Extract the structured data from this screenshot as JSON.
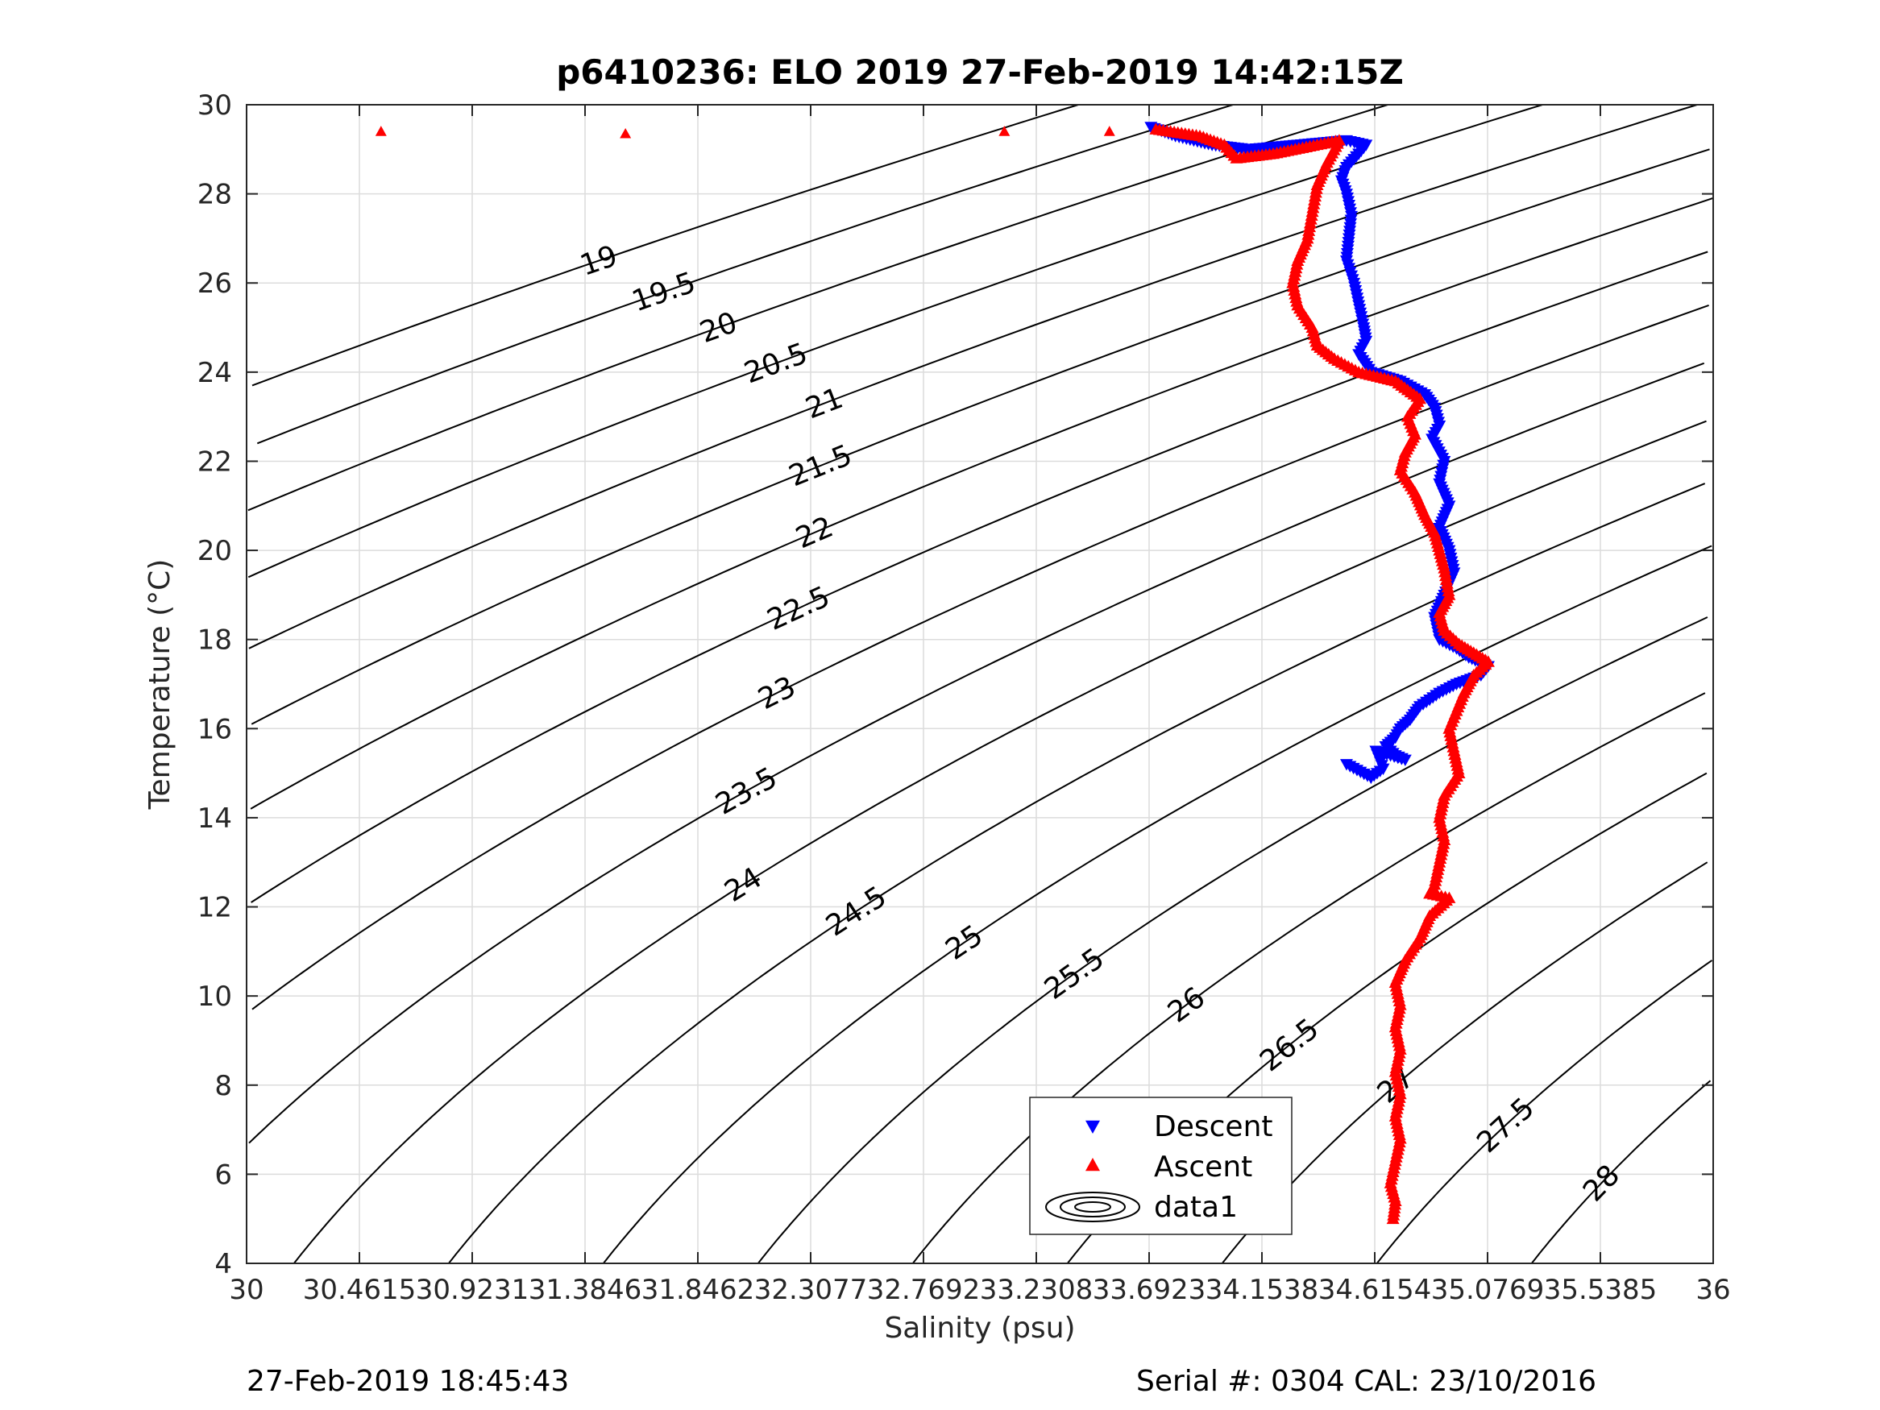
{
  "chart_data": {
    "type": "scatter",
    "title": "p6410236: ELO 2019 27-Feb-2019 14:42:15Z",
    "xlabel": "Salinity (psu)",
    "ylabel": "Temperature (°C)",
    "xlim": [
      30,
      36
    ],
    "ylim": [
      4,
      30
    ],
    "x_ticks": [
      "30",
      "30.4615",
      "30.9231",
      "31.3846",
      "31.8462",
      "32.3077",
      "32.7692",
      "33.2308",
      "33.6923",
      "34.1538",
      "34.6154",
      "35.0769",
      "35.5385",
      "36"
    ],
    "y_ticks": [
      "4",
      "6",
      "8",
      "10",
      "12",
      "14",
      "16",
      "18",
      "20",
      "22",
      "24",
      "26",
      "28",
      "30"
    ],
    "grid": true,
    "legend_position": "bottom-center",
    "legend": [
      "Descent",
      "Ascent",
      "data1"
    ],
    "density_contours": {
      "levels": [
        19,
        19.5,
        20,
        20.5,
        21,
        21.5,
        22,
        22.5,
        23,
        23.5,
        24,
        24.5,
        25,
        25.5,
        26,
        26.5,
        27,
        27.5,
        28
      ],
      "labels": [
        "19",
        "19.5",
        "20",
        "20.5",
        "21",
        "21.5",
        "22",
        "22.5",
        "23",
        "23.5",
        "24",
        "24.5",
        "25",
        "25.5",
        "26",
        "26.5",
        "27",
        "27.5",
        "28"
      ]
    },
    "series": [
      {
        "name": "Descent",
        "marker": "triangle-down",
        "color": "#0000ff",
        "points": [
          [
            33.7,
            29.5
          ],
          [
            33.8,
            29.3
          ],
          [
            33.95,
            29.1
          ],
          [
            34.1,
            29.0
          ],
          [
            34.3,
            29.1
          ],
          [
            34.5,
            29.2
          ],
          [
            34.58,
            29.1
          ],
          [
            34.55,
            28.9
          ],
          [
            34.5,
            28.6
          ],
          [
            34.48,
            28.3
          ],
          [
            34.5,
            28.0
          ],
          [
            34.52,
            27.5
          ],
          [
            34.51,
            27.0
          ],
          [
            34.5,
            26.5
          ],
          [
            34.53,
            26.0
          ],
          [
            34.55,
            25.5
          ],
          [
            34.57,
            25.0
          ],
          [
            34.58,
            24.7
          ],
          [
            34.55,
            24.4
          ],
          [
            34.6,
            24.0
          ],
          [
            34.72,
            23.8
          ],
          [
            34.82,
            23.5
          ],
          [
            34.86,
            23.2
          ],
          [
            34.88,
            22.8
          ],
          [
            34.85,
            22.5
          ],
          [
            34.9,
            22.0
          ],
          [
            34.88,
            21.5
          ],
          [
            34.92,
            21.0
          ],
          [
            34.88,
            20.5
          ],
          [
            34.92,
            20.0
          ],
          [
            34.94,
            19.5
          ],
          [
            34.9,
            19.0
          ],
          [
            34.86,
            18.5
          ],
          [
            34.88,
            18.0
          ],
          [
            34.95,
            17.8
          ],
          [
            35.0,
            17.6
          ],
          [
            35.08,
            17.4
          ],
          [
            35.05,
            17.2
          ],
          [
            34.95,
            17.0
          ],
          [
            34.88,
            16.8
          ],
          [
            34.8,
            16.5
          ],
          [
            34.76,
            16.2
          ],
          [
            34.72,
            16.0
          ],
          [
            34.7,
            15.8
          ],
          [
            34.66,
            15.6
          ],
          [
            34.7,
            15.4
          ],
          [
            34.74,
            15.3
          ],
          [
            34.62,
            15.5
          ],
          [
            34.65,
            15.1
          ],
          [
            34.6,
            14.9
          ],
          [
            34.5,
            15.2
          ]
        ]
      },
      {
        "name": "Ascent",
        "marker": "triangle-up",
        "color": "#ff0000",
        "points": [
          [
            30.55,
            29.4
          ],
          [
            31.55,
            29.35
          ],
          [
            33.1,
            29.4
          ],
          [
            33.53,
            29.4
          ],
          [
            33.72,
            29.45
          ],
          [
            33.9,
            29.3
          ],
          [
            34.0,
            29.1
          ],
          [
            34.05,
            28.8
          ],
          [
            34.2,
            28.9
          ],
          [
            34.38,
            29.1
          ],
          [
            34.47,
            29.2
          ],
          [
            34.42,
            28.7
          ],
          [
            34.38,
            28.2
          ],
          [
            34.36,
            27.6
          ],
          [
            34.34,
            27.0
          ],
          [
            34.3,
            26.5
          ],
          [
            34.28,
            26.0
          ],
          [
            34.3,
            25.5
          ],
          [
            34.36,
            25.0
          ],
          [
            34.38,
            24.6
          ],
          [
            34.45,
            24.3
          ],
          [
            34.55,
            24.0
          ],
          [
            34.7,
            23.8
          ],
          [
            34.8,
            23.4
          ],
          [
            34.75,
            23.0
          ],
          [
            34.78,
            22.6
          ],
          [
            34.74,
            22.2
          ],
          [
            34.72,
            21.8
          ],
          [
            34.78,
            21.3
          ],
          [
            34.82,
            20.8
          ],
          [
            34.86,
            20.4
          ],
          [
            34.88,
            20.0
          ],
          [
            34.9,
            19.6
          ],
          [
            34.92,
            19.0
          ],
          [
            34.88,
            18.6
          ],
          [
            34.9,
            18.2
          ],
          [
            34.96,
            17.9
          ],
          [
            35.02,
            17.7
          ],
          [
            35.08,
            17.5
          ],
          [
            35.02,
            17.2
          ],
          [
            34.98,
            16.8
          ],
          [
            34.95,
            16.4
          ],
          [
            34.92,
            16.0
          ],
          [
            34.94,
            15.5
          ],
          [
            34.96,
            15.0
          ],
          [
            34.9,
            14.5
          ],
          [
            34.88,
            14.0
          ],
          [
            34.9,
            13.5
          ],
          [
            34.88,
            13.0
          ],
          [
            34.86,
            12.5
          ],
          [
            34.84,
            12.3
          ],
          [
            34.92,
            12.2
          ],
          [
            34.84,
            11.8
          ],
          [
            34.8,
            11.3
          ],
          [
            34.74,
            10.8
          ],
          [
            34.7,
            10.3
          ],
          [
            34.72,
            9.8
          ],
          [
            34.7,
            9.3
          ],
          [
            34.72,
            8.8
          ],
          [
            34.7,
            8.3
          ],
          [
            34.72,
            7.8
          ],
          [
            34.7,
            7.3
          ],
          [
            34.72,
            6.8
          ],
          [
            34.7,
            6.3
          ],
          [
            34.68,
            5.8
          ],
          [
            34.7,
            5.4
          ],
          [
            34.69,
            5.0
          ]
        ]
      }
    ],
    "footer_left": "27-Feb-2019 18:45:43",
    "footer_right": "Serial #: 0304  CAL: 23/10/2016"
  }
}
